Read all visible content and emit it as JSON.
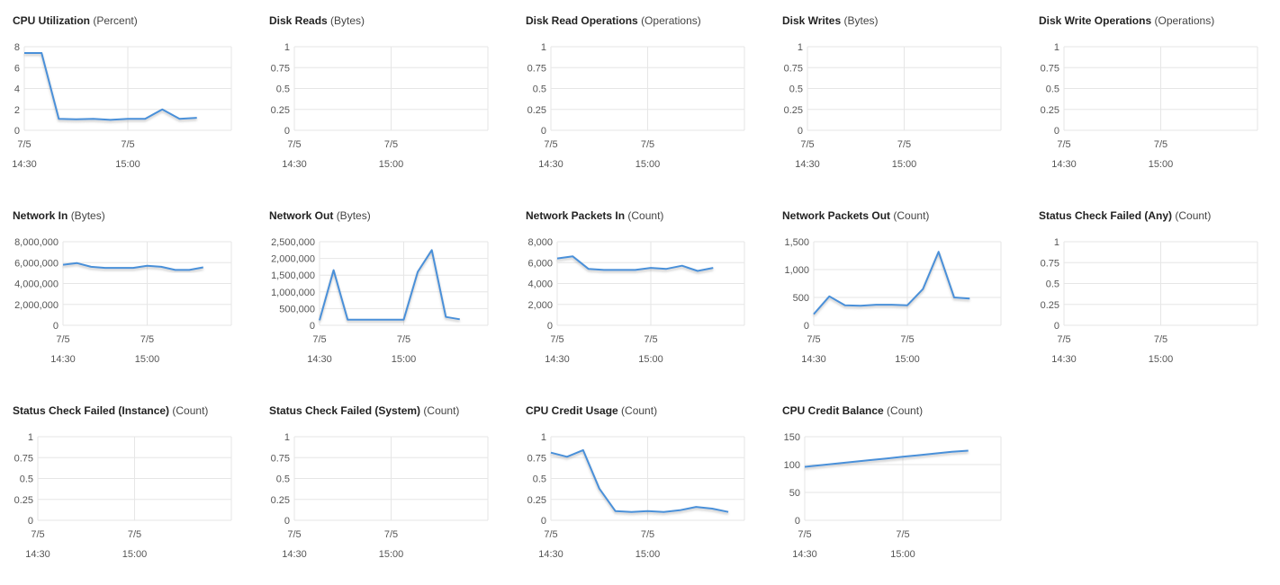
{
  "line_color": "#4a90d9",
  "x_domain": [
    "14:30",
    "15:30"
  ],
  "x_ticks": [
    {
      "date": "7/5",
      "time": "14:30"
    },
    {
      "date": "7/5",
      "time": "15:00"
    }
  ],
  "chart_data": [
    {
      "type": "line",
      "title": "CPU Utilization",
      "unit": "(Percent)",
      "ylim": [
        0,
        8
      ],
      "yticks": [
        "0",
        "2",
        "4",
        "6",
        "8"
      ],
      "ytick_values": [
        0,
        2,
        4,
        6,
        8
      ],
      "x": [
        "14:30",
        "14:35",
        "14:40",
        "14:45",
        "14:50",
        "14:55",
        "15:00",
        "15:05",
        "15:10",
        "15:15",
        "15:20"
      ],
      "values": [
        7.4,
        7.4,
        1.1,
        1.05,
        1.1,
        1.0,
        1.1,
        1.1,
        2.0,
        1.1,
        1.2
      ]
    },
    {
      "type": "line",
      "title": "Disk Reads",
      "unit": "(Bytes)",
      "ylim": [
        0,
        1
      ],
      "yticks": [
        "0",
        "0.25",
        "0.5",
        "0.75",
        "1"
      ],
      "ytick_values": [
        0,
        0.25,
        0.5,
        0.75,
        1
      ],
      "x": [
        "14:30",
        "14:35",
        "14:40",
        "14:45",
        "14:50",
        "14:55",
        "15:00",
        "15:05",
        "15:10",
        "15:15",
        "15:20"
      ],
      "values": [
        0,
        0,
        0,
        0,
        0,
        0,
        0,
        0,
        0,
        0,
        0
      ]
    },
    {
      "type": "line",
      "title": "Disk Read Operations",
      "unit": "(Operations)",
      "ylim": [
        0,
        1
      ],
      "yticks": [
        "0",
        "0.25",
        "0.5",
        "0.75",
        "1"
      ],
      "ytick_values": [
        0,
        0.25,
        0.5,
        0.75,
        1
      ],
      "x": [
        "14:30",
        "14:35",
        "14:40",
        "14:45",
        "14:50",
        "14:55",
        "15:00",
        "15:05",
        "15:10",
        "15:15",
        "15:20"
      ],
      "values": [
        0,
        0,
        0,
        0,
        0,
        0,
        0,
        0,
        0,
        0,
        0
      ]
    },
    {
      "type": "line",
      "title": "Disk Writes",
      "unit": "(Bytes)",
      "ylim": [
        0,
        1
      ],
      "yticks": [
        "0",
        "0.25",
        "0.5",
        "0.75",
        "1"
      ],
      "ytick_values": [
        0,
        0.25,
        0.5,
        0.75,
        1
      ],
      "x": [
        "14:30",
        "14:35",
        "14:40",
        "14:45",
        "14:50",
        "14:55",
        "15:00",
        "15:05",
        "15:10",
        "15:15",
        "15:20"
      ],
      "values": [
        0,
        0,
        0,
        0,
        0,
        0,
        0,
        0,
        0,
        0,
        0
      ]
    },
    {
      "type": "line",
      "title": "Disk Write Operations",
      "unit": "(Operations)",
      "ylim": [
        0,
        1
      ],
      "yticks": [
        "0",
        "0.25",
        "0.5",
        "0.75",
        "1"
      ],
      "ytick_values": [
        0,
        0.25,
        0.5,
        0.75,
        1
      ],
      "x": [
        "14:30",
        "14:35",
        "14:40",
        "14:45",
        "14:50",
        "14:55",
        "15:00",
        "15:05",
        "15:10",
        "15:15",
        "15:20"
      ],
      "values": [
        0,
        0,
        0,
        0,
        0,
        0,
        0,
        0,
        0,
        0,
        0
      ]
    },
    {
      "type": "line",
      "title": "Network In",
      "unit": "(Bytes)",
      "ylim": [
        0,
        8000000
      ],
      "yticks": [
        "0",
        "2,000,000",
        "4,000,000",
        "6,000,000",
        "8,000,000"
      ],
      "ytick_values": [
        0,
        2000000,
        4000000,
        6000000,
        8000000
      ],
      "x": [
        "14:30",
        "14:35",
        "14:40",
        "14:45",
        "14:50",
        "14:55",
        "15:00",
        "15:05",
        "15:10",
        "15:15",
        "15:20"
      ],
      "values": [
        5800000,
        5950000,
        5600000,
        5500000,
        5500000,
        5500000,
        5700000,
        5600000,
        5300000,
        5300000,
        5550000
      ]
    },
    {
      "type": "line",
      "title": "Network Out",
      "unit": "(Bytes)",
      "ylim": [
        0,
        2500000
      ],
      "yticks": [
        "0",
        "500,000",
        "1,000,000",
        "1,500,000",
        "2,000,000",
        "2,500,000"
      ],
      "ytick_values": [
        0,
        500000,
        1000000,
        1500000,
        2000000,
        2500000
      ],
      "x": [
        "14:30",
        "14:35",
        "14:40",
        "14:45",
        "14:50",
        "14:55",
        "15:00",
        "15:05",
        "15:10",
        "15:15",
        "15:20"
      ],
      "values": [
        150000,
        1650000,
        170000,
        170000,
        170000,
        170000,
        170000,
        1600000,
        2250000,
        250000,
        180000
      ]
    },
    {
      "type": "line",
      "title": "Network Packets In",
      "unit": "(Count)",
      "ylim": [
        0,
        8000
      ],
      "yticks": [
        "0",
        "2,000",
        "4,000",
        "6,000",
        "8,000"
      ],
      "ytick_values": [
        0,
        2000,
        4000,
        6000,
        8000
      ],
      "x": [
        "14:30",
        "14:35",
        "14:40",
        "14:45",
        "14:50",
        "14:55",
        "15:00",
        "15:05",
        "15:10",
        "15:15",
        "15:20"
      ],
      "values": [
        6400,
        6600,
        5400,
        5300,
        5300,
        5300,
        5500,
        5400,
        5700,
        5200,
        5500
      ]
    },
    {
      "type": "line",
      "title": "Network Packets Out",
      "unit": "(Count)",
      "ylim": [
        0,
        1500
      ],
      "yticks": [
        "0",
        "500",
        "1,000",
        "1,500"
      ],
      "ytick_values": [
        0,
        500,
        1000,
        1500
      ],
      "x": [
        "14:30",
        "14:35",
        "14:40",
        "14:45",
        "14:50",
        "14:55",
        "15:00",
        "15:05",
        "15:10",
        "15:15",
        "15:20"
      ],
      "values": [
        200,
        520,
        360,
        350,
        370,
        370,
        360,
        650,
        1320,
        500,
        480
      ]
    },
    {
      "type": "line",
      "title": "Status Check Failed (Any)",
      "unit": "(Count)",
      "ylim": [
        0,
        1
      ],
      "yticks": [
        "0",
        "0.25",
        "0.5",
        "0.75",
        "1"
      ],
      "ytick_values": [
        0,
        0.25,
        0.5,
        0.75,
        1
      ],
      "x": [
        "14:30",
        "14:35",
        "14:40",
        "14:45",
        "14:50",
        "14:55",
        "15:00",
        "15:05",
        "15:10",
        "15:15",
        "15:20"
      ],
      "values": [
        0,
        0,
        0,
        0,
        0,
        0,
        0,
        0,
        0,
        0,
        0
      ]
    },
    {
      "type": "line",
      "title": "Status Check Failed (Instance)",
      "unit": "(Count)",
      "ylim": [
        0,
        1
      ],
      "yticks": [
        "0",
        "0.25",
        "0.5",
        "0.75",
        "1"
      ],
      "ytick_values": [
        0,
        0.25,
        0.5,
        0.75,
        1
      ],
      "x": [
        "14:30",
        "14:35",
        "14:40",
        "14:45",
        "14:50",
        "14:55",
        "15:00",
        "15:05",
        "15:10",
        "15:15",
        "15:20"
      ],
      "values": [
        0,
        0,
        0,
        0,
        0,
        0,
        0,
        0,
        0,
        0,
        0
      ]
    },
    {
      "type": "line",
      "title": "Status Check Failed (System)",
      "unit": "(Count)",
      "ylim": [
        0,
        1
      ],
      "yticks": [
        "0",
        "0.25",
        "0.5",
        "0.75",
        "1"
      ],
      "ytick_values": [
        0,
        0.25,
        0.5,
        0.75,
        1
      ],
      "x": [
        "14:30",
        "14:35",
        "14:40",
        "14:45",
        "14:50",
        "14:55",
        "15:00",
        "15:05",
        "15:10",
        "15:15",
        "15:20"
      ],
      "values": [
        0,
        0,
        0,
        0,
        0,
        0,
        0,
        0,
        0,
        0,
        0
      ]
    },
    {
      "type": "line",
      "title": "CPU Credit Usage",
      "unit": "(Count)",
      "ylim": [
        0,
        1
      ],
      "yticks": [
        "0",
        "0.25",
        "0.5",
        "0.75",
        "1"
      ],
      "ytick_values": [
        0,
        0.25,
        0.5,
        0.75,
        1
      ],
      "x": [
        "14:30",
        "14:35",
        "14:40",
        "14:45",
        "14:50",
        "14:55",
        "15:00",
        "15:05",
        "15:10",
        "15:15",
        "15:20",
        "15:25"
      ],
      "values": [
        0.81,
        0.76,
        0.84,
        0.38,
        0.11,
        0.1,
        0.11,
        0.1,
        0.12,
        0.16,
        0.14,
        0.1
      ]
    },
    {
      "type": "line",
      "title": "CPU Credit Balance",
      "unit": "(Count)",
      "ylim": [
        0,
        150
      ],
      "yticks": [
        "0",
        "50",
        "100",
        "150"
      ],
      "ytick_values": [
        0,
        50,
        100,
        150
      ],
      "x": [
        "14:30",
        "14:35",
        "14:40",
        "14:45",
        "14:50",
        "14:55",
        "15:00",
        "15:05",
        "15:10",
        "15:15",
        "15:20"
      ],
      "values": [
        96,
        99,
        102,
        105,
        108,
        111,
        114,
        117,
        120,
        123,
        125
      ]
    }
  ]
}
